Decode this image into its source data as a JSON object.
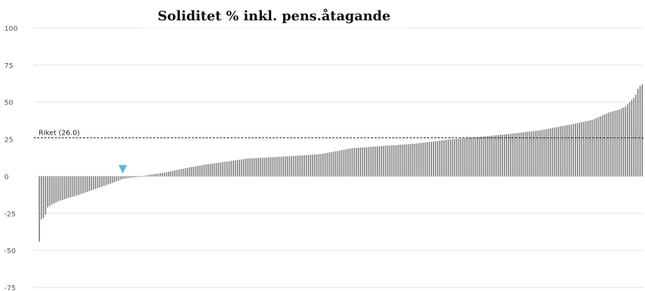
{
  "chart_data": {
    "type": "bar",
    "title": "Soliditet % inkl. pens.åtagande",
    "xlabel": "",
    "ylabel": "",
    "ylim": [
      -75,
      100
    ],
    "yticks": [
      100,
      75,
      50,
      25,
      0,
      -25,
      -50,
      -75
    ],
    "grid": true,
    "legend": "none",
    "reference_line": {
      "label": "Riket (26.0)",
      "value": 26.0
    },
    "highlight": {
      "index": 40,
      "marker": "down-triangle",
      "color": "#5bb4e0"
    },
    "bar_color": "#888888",
    "bar_count": 290,
    "anchors": [
      [
        0,
        -44
      ],
      [
        1,
        -29
      ],
      [
        2,
        -28
      ],
      [
        3,
        -26
      ],
      [
        4,
        -21
      ],
      [
        6,
        -19
      ],
      [
        9,
        -17
      ],
      [
        13,
        -15
      ],
      [
        18,
        -13
      ],
      [
        24,
        -10
      ],
      [
        30,
        -7
      ],
      [
        36,
        -4
      ],
      [
        40,
        -1.8
      ],
      [
        45,
        -0.8
      ],
      [
        49,
        -0.3
      ],
      [
        51,
        0.5
      ],
      [
        55,
        1.5
      ],
      [
        60,
        2.5
      ],
      [
        65,
        4
      ],
      [
        72,
        6
      ],
      [
        80,
        8
      ],
      [
        90,
        10
      ],
      [
        100,
        12
      ],
      [
        110,
        12.8
      ],
      [
        120,
        13.5
      ],
      [
        135,
        15
      ],
      [
        150,
        19
      ],
      [
        165,
        20.5
      ],
      [
        180,
        22
      ],
      [
        195,
        24.5
      ],
      [
        210,
        26.5
      ],
      [
        225,
        28.5
      ],
      [
        240,
        31
      ],
      [
        255,
        35
      ],
      [
        265,
        38
      ],
      [
        273,
        43
      ],
      [
        278,
        45
      ],
      [
        281,
        47
      ],
      [
        283,
        50
      ],
      [
        285,
        53
      ],
      [
        286,
        55
      ],
      [
        287,
        59
      ],
      [
        288,
        61
      ],
      [
        289,
        62
      ]
    ]
  }
}
